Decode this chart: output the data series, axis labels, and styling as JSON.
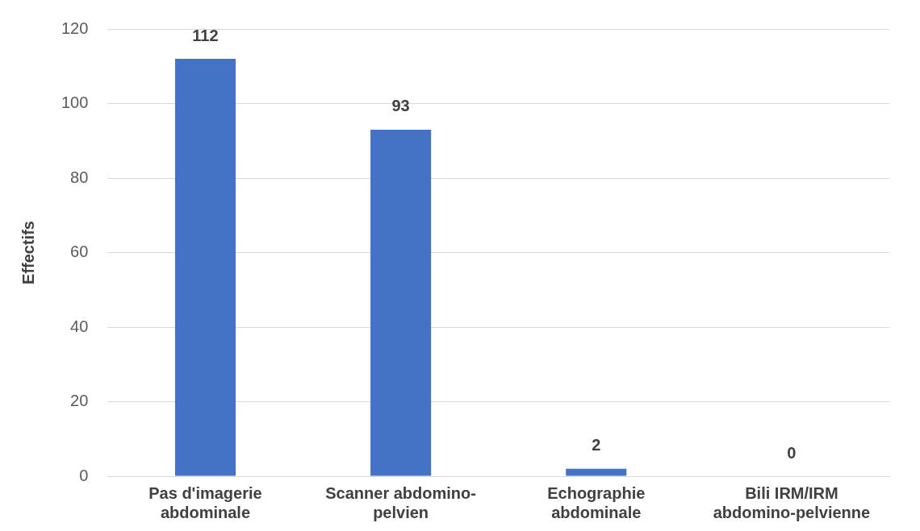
{
  "chart_data": {
    "type": "bar",
    "ylabel": "Effectifs",
    "categories": [
      "Pas d'imagerie abdominale",
      "Scanner abdomino-pelvien",
      "Echographie abdominale",
      "Bili IRM/IRM abdomino-pelvienne"
    ],
    "values": [
      112,
      93,
      2,
      0
    ],
    "color": "#4472c4",
    "ylim": [
      0,
      120
    ],
    "yticks": [
      0,
      20,
      40,
      60,
      80,
      100,
      120
    ],
    "grid": "y",
    "data_labels": true,
    "legend": false
  }
}
